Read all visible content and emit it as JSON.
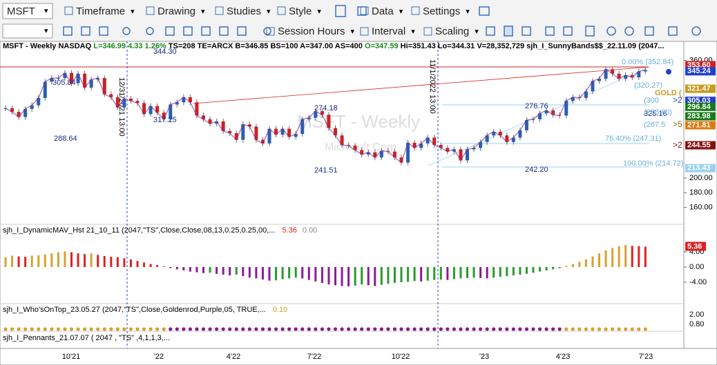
{
  "toolbar": {
    "symbol": "MSFT",
    "menus": [
      "Timeframe",
      "Drawing",
      "Studies",
      "Style",
      "Data",
      "Settings"
    ],
    "menus2": [
      "Session Hours",
      "Interval",
      "Scaling"
    ]
  },
  "chart": {
    "header": [
      {
        "text": "MSFT - Weekly  NASDAQ  ",
        "color": "#000000"
      },
      {
        "text": "L=346.99  4.33  1.26%  ",
        "color": "#1a8a1a"
      },
      {
        "text": "TS=208  TE=ARCX  B=346.85  BS=100  A=347.00  AS=400  ",
        "color": "#000000"
      },
      {
        "text": "O=347.59  ",
        "color": "#1a8a1a"
      },
      {
        "text": "Hi=351.43  Lo=344.31  V=28,352,729  sjh_I_SunnyBands$$_22.11.09 (2047...",
        "color": "#000000"
      }
    ],
    "watermark": [
      "MSFT - Weekly",
      "Microsoft Corp"
    ],
    "date_markers": [
      "12/31/2021 13:00",
      "11/1/2022 13:00"
    ],
    "annotations": [
      "305.84",
      "288.64",
      "344.30",
      "317.25",
      "274.18",
      "241.51",
      "276.76",
      "242.20",
      "325.16"
    ],
    "fib_labels": [
      "0.00% (352.84)",
      "(320.27)",
      "(300",
      "(283.80)",
      "(267.5",
      "76.40% (247.31)",
      "100.00% (214.72)"
    ],
    "gold_label": "GOLD (",
    "arrow_labels": [
      ">2",
      ">5",
      ">2"
    ],
    "closes": [
      295,
      290,
      283,
      294,
      299,
      309,
      331,
      336,
      336,
      343,
      329,
      342,
      323,
      334,
      336,
      314,
      310,
      296,
      308,
      305,
      302,
      287,
      298,
      289,
      280,
      300,
      303,
      310,
      303,
      285,
      280,
      274,
      277,
      264,
      261,
      252,
      273,
      270,
      252,
      247,
      267,
      259,
      267,
      256,
      260,
      280,
      282,
      291,
      286,
      268,
      258,
      245,
      244,
      238,
      232,
      235,
      228,
      237,
      236,
      228,
      221,
      248,
      241,
      247,
      255,
      245,
      241,
      236,
      239,
      224,
      239,
      241,
      249,
      258,
      263,
      258,
      249,
      255,
      265,
      279,
      280,
      288,
      292,
      286,
      285,
      305,
      310,
      309,
      318,
      332,
      335,
      348,
      342,
      335,
      340,
      337,
      345,
      347
    ],
    "price_ticks": [
      {
        "value": 360,
        "label": "360.00"
      },
      {
        "value": 200,
        "label": "200.00"
      },
      {
        "value": 180,
        "label": "180.00"
      },
      {
        "value": 160,
        "label": "160.00"
      }
    ],
    "price_markers": [
      {
        "value": 353.6,
        "label": "353.60",
        "color": "#d62020"
      },
      {
        "value": 345.24,
        "label": "345.24",
        "color": "#1f3fd0"
      },
      {
        "value": 321.47,
        "label": "321.47",
        "color": "#c89a1e"
      },
      {
        "value": 305.03,
        "label": "305.03",
        "color": "#1f3fd0"
      },
      {
        "value": 296.84,
        "label": "296.84",
        "color": "#1a7a1a"
      },
      {
        "value": 283.98,
        "label": "283.98",
        "color": "#1a7a1a"
      },
      {
        "value": 271.81,
        "label": "271.81",
        "color": "#e07a10"
      },
      {
        "value": 244.55,
        "label": "244.55",
        "color": "#8a1010"
      },
      {
        "value": 213.43,
        "label": "213.43",
        "color": "#9ad0f0"
      }
    ]
  },
  "panes": [
    {
      "title": "sjh_I_DynamicMAV_Hst 21_10_11 (2047,\"TS\",Close,Close,08,13,0.25,0.25,00,...",
      "values": [
        {
          "text": "5.36",
          "color": "#d62020"
        },
        {
          "text": "0.00",
          "color": "#888888"
        }
      ]
    },
    {
      "title": "sjh_I_Who'sOnTop_23.05.27 (2047,\"TS\",Close,Goldenrod,Purple,05,  TRUE,...",
      "values": [
        {
          "text": "0.10",
          "color": "#d09a20"
        }
      ]
    },
    {
      "title": "sjh_I_Pennants_21.07.07 ( 2047 , \"TS\" ,4,1,1,3,...",
      "values": []
    }
  ],
  "hist": {
    "values": [
      2.6,
      3.0,
      2.8,
      2.7,
      3.0,
      3.1,
      3.3,
      3.6,
      3.9,
      4.1,
      3.9,
      3.6,
      3.4,
      3.6,
      3.2,
      2.9,
      2.7,
      2.6,
      2.3,
      2.0,
      1.6,
      1.2,
      0.8,
      0.5,
      0.2,
      -0.3,
      -0.6,
      -0.9,
      -1.2,
      -1.4,
      -1.6,
      -1.5,
      -1.8,
      -2.0,
      -2.2,
      -2.0,
      -2.4,
      -2.8,
      -3.0,
      -3.3,
      -3.6,
      -3.5,
      -3.2,
      -3.0,
      -2.8,
      -3.0,
      -3.4,
      -3.8,
      -4.2,
      -4.6,
      -4.8,
      -5.0,
      -5.1,
      -4.9,
      -4.6,
      -4.8,
      -5.0,
      -4.7,
      -4.4,
      -4.2,
      -4.0,
      -3.9,
      -3.7,
      -3.8,
      -3.6,
      -3.4,
      -3.3,
      -3.4,
      -3.2,
      -3.0,
      -2.9,
      -2.8,
      -2.9,
      -3.0,
      -2.8,
      -2.6,
      -2.4,
      -2.2,
      -2.0,
      -1.8,
      -1.5,
      -1.2,
      -0.9,
      -0.6,
      -0.3,
      0.3,
      0.8,
      1.4,
      2.0,
      2.8,
      3.6,
      4.4,
      5.0,
      5.5,
      5.8,
      5.6,
      5.5,
      5.36
    ],
    "ticks": [
      {
        "value": 4,
        "label": "4.00"
      },
      {
        "value": 0,
        "label": "0.00"
      },
      {
        "value": -4,
        "label": "-4.00"
      }
    ],
    "marker": "5.36"
  },
  "pane2_ticks": [
    "2.00",
    "0.80"
  ],
  "x_labels": [
    "10'21",
    "'22",
    "4'22",
    "7'22",
    "10'22",
    "'23",
    "4'23",
    "7'23"
  ]
}
